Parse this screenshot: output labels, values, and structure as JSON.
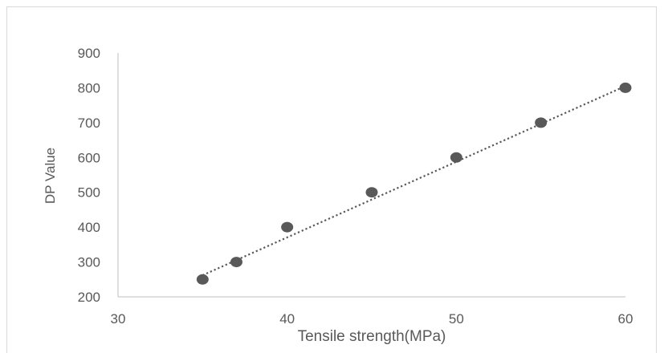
{
  "chart_data": {
    "type": "scatter",
    "title": "",
    "xlabel": "Tensile strength(MPa)",
    "ylabel": "DP Value",
    "xlim": [
      30,
      60
    ],
    "ylim": [
      200,
      900
    ],
    "xticks": [
      "30",
      "40",
      "50",
      "60"
    ],
    "yticks": [
      "200",
      "300",
      "400",
      "500",
      "600",
      "700",
      "800",
      "900"
    ],
    "grid": false,
    "legend": "none",
    "trendline": {
      "type": "linear",
      "style": "dotted",
      "x": [
        35,
        60
      ],
      "y": [
        262,
        805
      ]
    },
    "series": [
      {
        "x": [
          35,
          37,
          40,
          45,
          50,
          55,
          60
        ],
        "y": [
          250,
          300,
          400,
          500,
          600,
          700,
          800
        ]
      }
    ],
    "colors": {
      "marker": "#595959",
      "trendline": "#595959",
      "axis": "#bfbfbf",
      "text": "#595959"
    }
  }
}
